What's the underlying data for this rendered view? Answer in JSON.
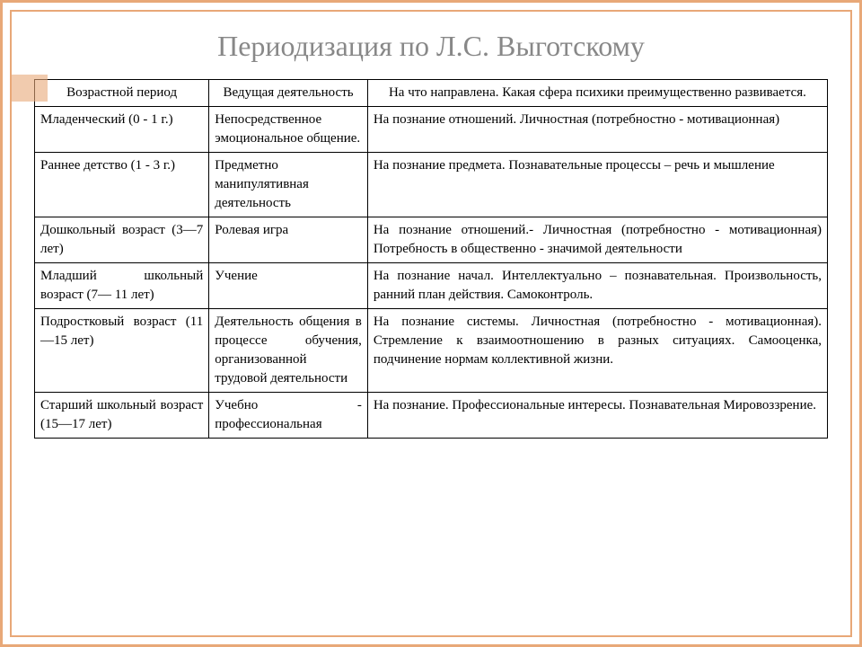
{
  "title": "Периодизация по Л.С. Выготскому",
  "colors": {
    "frame": "#e8a878",
    "title_color": "#888888",
    "border": "#000000",
    "background": "#ffffff",
    "text": "#000000"
  },
  "table": {
    "columns": [
      "Возрастной период",
      "Ведущая деятельность",
      "На что направлена. Какая сфера психики преимущественно развивается."
    ],
    "column_widths": [
      "22%",
      "20%",
      "58%"
    ],
    "rows": [
      {
        "period": "Младенческий (0 - 1 г.)",
        "activity": "Непосредственное эмоциональное общение.",
        "focus": "На познание отношений. Личностная (потребностно - мотивационная)"
      },
      {
        "period": "Раннее детство (1 - 3 г.)",
        "activity": "Предметно манипулятивная деятельность",
        "focus": "На познание предмета. Познавательные процессы – речь и мышление"
      },
      {
        "period": "Дошкольный возраст (3—7 лет)",
        "activity": "Ролевая игра",
        "focus": "На познание отношений.- Личностная (потребностно - мотивационная) Потребность в общественно - значимой деятельности"
      },
      {
        "period": "Младший школьный возраст (7— 11 лет)",
        "activity": "Учение",
        "focus": "На познание начал. Интеллектуально – познавательная. Произвольность, ранний план действия. Самоконтроль."
      },
      {
        "period": "Подростковый возраст (11—15 лет)",
        "activity": "Деятельность общения в процессе обучения, организованной трудовой деятельности",
        "focus": "На познание системы. Личностная (потребностно - мотивационная). Стремление к взаимоотношению в разных ситуациях. Самооценка, подчинение нормам коллективной жизни."
      },
      {
        "period": "Старший школьный возраст (15—17 лет)",
        "activity": "Учебно - профессиональная",
        "focus": "На познание. Профессиональные интересы. Познавательная Мировоззрение."
      }
    ]
  },
  "typography": {
    "title_fontsize": 32,
    "body_fontsize": 15,
    "font_family": "Times New Roman"
  }
}
